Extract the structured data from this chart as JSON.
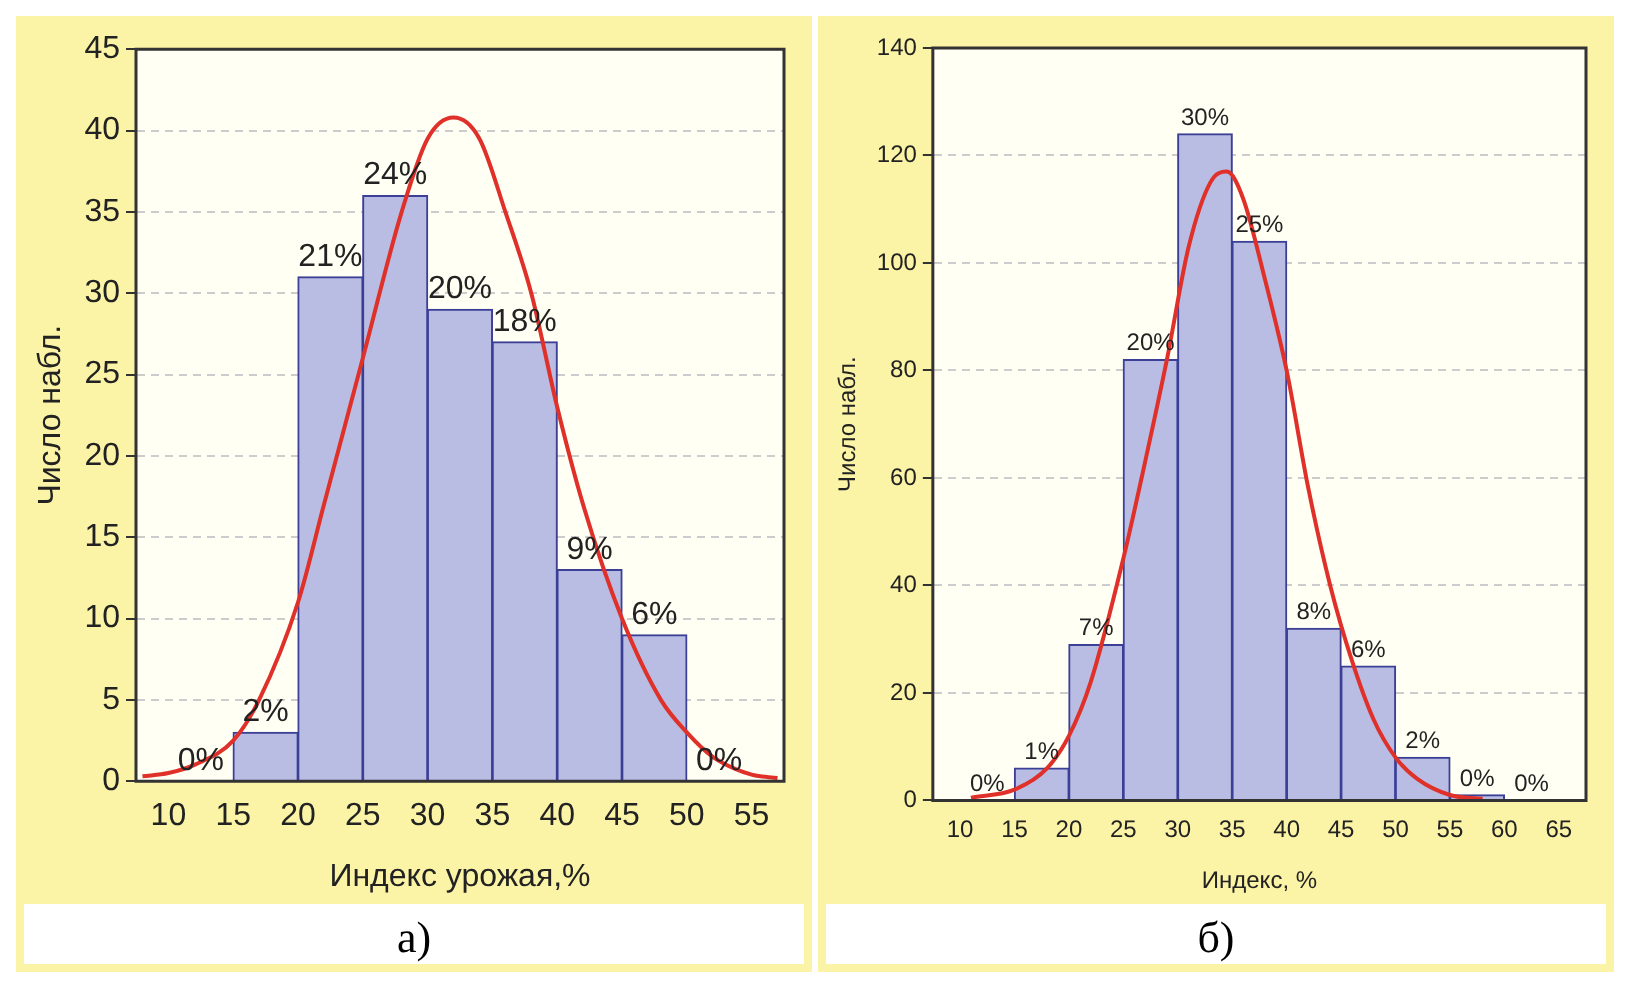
{
  "chart_data": [
    {
      "type": "histogram",
      "xlabel": "Индекс урожая,%",
      "ylabel": "Число набл.",
      "color": "#b9bde3",
      "bins": [
        10,
        15,
        20,
        25,
        30,
        35,
        40,
        45,
        50,
        55
      ],
      "values": [
        0,
        3,
        31,
        36,
        29,
        27,
        13,
        9,
        0
      ],
      "annotations": [
        "а)",
        {
          "text": "0%",
          "x": 12.5,
          "y": 0
        },
        {
          "text": "2%",
          "x": 17.5,
          "y": 3
        },
        {
          "text": "21%",
          "x": 22.5,
          "y": 31
        },
        {
          "text": "24%",
          "x": 27.5,
          "y": 36
        },
        {
          "text": "20%",
          "x": 32.5,
          "y": 29
        },
        {
          "text": "18%",
          "x": 37.5,
          "y": 27
        },
        {
          "text": "9%",
          "x": 42.5,
          "y": 13
        },
        {
          "text": "6%",
          "x": 47.5,
          "y": 9
        },
        {
          "text": "0%",
          "x": 52.5,
          "y": 0
        }
      ],
      "series": [
        {
          "type": "line",
          "color": "#e0302a",
          "x": [
            8,
            10,
            12,
            15,
            17,
            20,
            22,
            25,
            28,
            30,
            32,
            34,
            36,
            38,
            40,
            42,
            45,
            48,
            50,
            52,
            55,
            57
          ],
          "values": [
            0.3,
            0.5,
            1,
            2.5,
            5,
            11,
            17,
            26,
            35,
            39.5,
            40.8,
            39.5,
            35,
            30,
            23,
            17,
            10,
            5,
            3,
            1.5,
            0.4,
            0.2
          ]
        }
      ],
      "xlim": [
        7.5,
        57.5
      ],
      "xticks": [
        10,
        15,
        20,
        25,
        30,
        35,
        40,
        45,
        50,
        55
      ],
      "ylim": [
        0,
        45
      ],
      "yticks": [
        0,
        5,
        10,
        15,
        20,
        25,
        30,
        35,
        40,
        45
      ],
      "grid": "y"
    },
    {
      "type": "histogram",
      "xlabel": "Индекс, %",
      "ylabel": "Число набл.",
      "color": "#b9bde3",
      "bins": [
        10,
        15,
        20,
        25,
        30,
        35,
        40,
        45,
        50,
        55,
        60,
        65
      ],
      "values": [
        0,
        6,
        29,
        82,
        124,
        104,
        32,
        25,
        8,
        1,
        0
      ],
      "annotations": [
        "б)",
        {
          "text": "0%",
          "x": 12.5,
          "y": 0
        },
        {
          "text": "1%",
          "x": 17.5,
          "y": 6
        },
        {
          "text": "7%",
          "x": 22.5,
          "y": 29
        },
        {
          "text": "20%",
          "x": 27.5,
          "y": 82
        },
        {
          "text": "30%",
          "x": 32.5,
          "y": 124
        },
        {
          "text": "25%",
          "x": 37.5,
          "y": 104
        },
        {
          "text": "8%",
          "x": 42.5,
          "y": 32
        },
        {
          "text": "6%",
          "x": 47.5,
          "y": 25
        },
        {
          "text": "2%",
          "x": 52.5,
          "y": 8
        },
        {
          "text": "0%",
          "x": 57.5,
          "y": 1
        },
        {
          "text": "0%",
          "x": 62.5,
          "y": 0
        }
      ],
      "series": [
        {
          "type": "line",
          "color": "#e0302a",
          "x": [
            11,
            15,
            18,
            20,
            22,
            25,
            27,
            29,
            31,
            33,
            34.5,
            36,
            38,
            40,
            42,
            44,
            46,
            48,
            50,
            52,
            55,
            58
          ],
          "values": [
            0.5,
            2,
            6,
            12,
            22,
            45,
            63,
            82,
            103,
            115,
            117,
            112,
            97,
            80,
            58,
            40,
            26,
            15,
            8,
            4,
            1,
            0.3
          ]
        }
      ],
      "xlim": [
        7.5,
        67.5
      ],
      "xticks": [
        10,
        15,
        20,
        25,
        30,
        35,
        40,
        45,
        50,
        55,
        60,
        65
      ],
      "ylim": [
        0,
        140
      ],
      "yticks": [
        0,
        20,
        40,
        60,
        80,
        100,
        120,
        140
      ],
      "grid": "y"
    }
  ]
}
